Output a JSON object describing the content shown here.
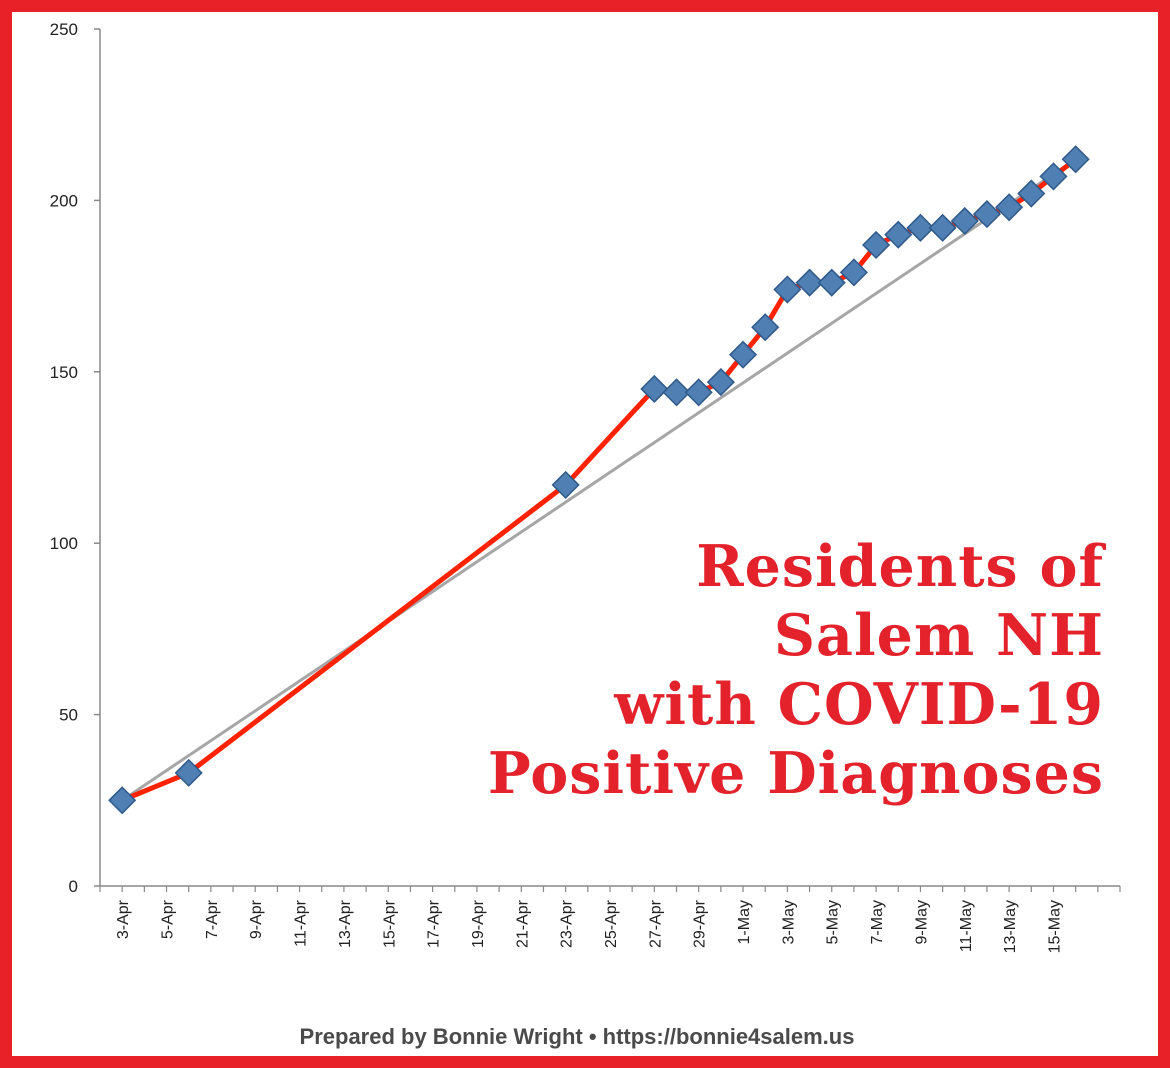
{
  "title_lines": [
    "Residents of",
    "Salem NH",
    "with COVID-19",
    "Positive Diagnoses"
  ],
  "credit": "Prepared by Bonnie Wright • https://bonnie4salem.us",
  "colors": {
    "frame": "#e82128",
    "title": "#e3222b",
    "series_line": "#ff2200",
    "marker": "#4f7fb3",
    "trendline": "#a6a6a6",
    "axis": "#888888"
  },
  "chart_data": {
    "type": "line",
    "xlabel": "",
    "ylabel": "",
    "ylim": [
      0,
      250
    ],
    "y_ticks": [
      0,
      50,
      100,
      150,
      200,
      250
    ],
    "x_range": [
      "2020-04-02",
      "2020-05-18"
    ],
    "x_ticks": [
      "3-Apr",
      "5-Apr",
      "7-Apr",
      "9-Apr",
      "11-Apr",
      "13-Apr",
      "15-Apr",
      "17-Apr",
      "19-Apr",
      "21-Apr",
      "23-Apr",
      "25-Apr",
      "27-Apr",
      "29-Apr",
      "1-May",
      "3-May",
      "5-May",
      "7-May",
      "9-May",
      "11-May",
      "13-May",
      "15-May"
    ],
    "x_tick_dates": [
      "2020-04-03",
      "2020-04-05",
      "2020-04-07",
      "2020-04-09",
      "2020-04-11",
      "2020-04-13",
      "2020-04-15",
      "2020-04-17",
      "2020-04-19",
      "2020-04-21",
      "2020-04-23",
      "2020-04-25",
      "2020-04-27",
      "2020-04-29",
      "2020-05-01",
      "2020-05-03",
      "2020-05-05",
      "2020-05-07",
      "2020-05-09",
      "2020-05-11",
      "2020-05-13",
      "2020-05-15"
    ],
    "grid": false,
    "legend": "none",
    "series": [
      {
        "x": [
          "2020-04-03",
          "2020-04-06",
          "2020-04-23",
          "2020-04-27",
          "2020-04-28",
          "2020-04-29",
          "2020-04-30",
          "2020-05-01",
          "2020-05-02",
          "2020-05-03",
          "2020-05-04",
          "2020-05-05",
          "2020-05-06",
          "2020-05-07",
          "2020-05-08",
          "2020-05-09",
          "2020-05-10",
          "2020-05-11",
          "2020-05-12",
          "2020-05-13",
          "2020-05-14",
          "2020-05-15",
          "2020-05-16"
        ],
        "values": [
          25,
          33,
          117,
          145,
          144,
          144,
          147,
          155,
          163,
          174,
          176,
          176,
          179,
          187,
          190,
          192,
          192,
          194,
          196,
          198,
          202,
          207,
          212
        ]
      },
      {
        "type": "linear trendline",
        "x": [
          "2020-04-03",
          "2020-05-16"
        ],
        "values": [
          25,
          212
        ]
      }
    ]
  }
}
